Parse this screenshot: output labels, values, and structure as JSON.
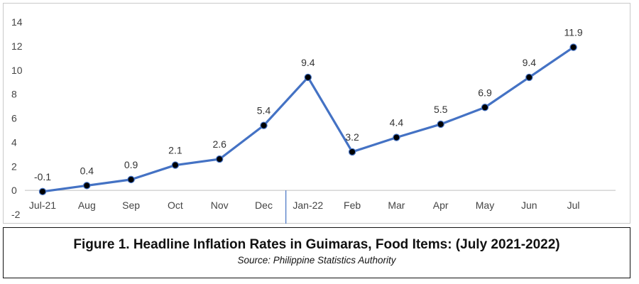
{
  "chart_data": {
    "type": "line",
    "categories": [
      "Jul-21",
      "Aug",
      "Sep",
      "Oct",
      "Nov",
      "Dec",
      "Jan-22",
      "Feb",
      "Mar",
      "Apr",
      "May",
      "Jun",
      "Jul"
    ],
    "series": [
      {
        "values": [
          -0.1,
          0.4,
          0.9,
          2.1,
          2.6,
          5.4,
          9.4,
          3.2,
          4.4,
          5.5,
          6.9,
          9.4,
          11.9
        ]
      }
    ],
    "data_labels": [
      "-0.1",
      "0.4",
      "0.9",
      "2.1",
      "2.6",
      "5.4",
      "9.4",
      "3.2",
      "4.4",
      "5.5",
      "6.9",
      "9.4",
      "11.9"
    ],
    "y_ticks": [
      "14",
      "12",
      "10",
      "8",
      "6",
      "4",
      "2",
      "0",
      "-2"
    ],
    "ylim": [
      -2,
      14
    ],
    "grid": false,
    "legend": "none",
    "line_color": "#4472C4",
    "marker_color": "#000000"
  },
  "caption": {
    "title": "Figure 1. Headline Inflation Rates in Guimaras, Food Items: (July 2021-2022)",
    "source": "Source: Philippine Statistics Authority"
  }
}
